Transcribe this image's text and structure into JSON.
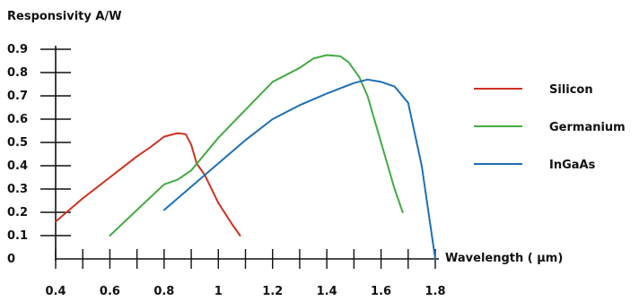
{
  "chart_data": {
    "type": "line",
    "ylabel": "Responsivity A/W",
    "xlabel": "Wavelength ( μm)",
    "xlim": [
      0.4,
      1.8
    ],
    "ylim": [
      0,
      0.9
    ],
    "x_ticks": [
      0.4,
      0.6,
      0.8,
      1,
      1.2,
      1.4,
      1.6,
      1.8
    ],
    "y_ticks": [
      0,
      0.1,
      0.2,
      0.3,
      0.4,
      0.5,
      0.6,
      0.7,
      0.8,
      0.9
    ],
    "grid": false,
    "legend_position": "right",
    "series": [
      {
        "name": "Silicon",
        "color": "#cc3322",
        "x": [
          0.4,
          0.5,
          0.6,
          0.7,
          0.75,
          0.8,
          0.85,
          0.88,
          0.9,
          0.92,
          0.95,
          1.0,
          1.05,
          1.08
        ],
        "y": [
          0.16,
          0.26,
          0.35,
          0.44,
          0.48,
          0.525,
          0.54,
          0.535,
          0.49,
          0.41,
          0.36,
          0.24,
          0.15,
          0.1
        ]
      },
      {
        "name": "Germanium",
        "color": "#44aa44",
        "x": [
          0.6,
          0.7,
          0.8,
          0.85,
          0.9,
          1.0,
          1.1,
          1.2,
          1.3,
          1.35,
          1.4,
          1.45,
          1.48,
          1.52,
          1.55,
          1.6,
          1.65,
          1.68
        ],
        "y": [
          0.1,
          0.21,
          0.32,
          0.34,
          0.38,
          0.52,
          0.64,
          0.76,
          0.82,
          0.86,
          0.875,
          0.87,
          0.845,
          0.78,
          0.7,
          0.5,
          0.3,
          0.2
        ]
      },
      {
        "name": "InGaAs",
        "color": "#1f6fb2",
        "x": [
          0.8,
          0.9,
          1.0,
          1.1,
          1.2,
          1.3,
          1.4,
          1.5,
          1.55,
          1.6,
          1.65,
          1.7,
          1.75,
          1.8
        ],
        "y": [
          0.21,
          0.31,
          0.41,
          0.51,
          0.6,
          0.66,
          0.71,
          0.755,
          0.77,
          0.76,
          0.74,
          0.67,
          0.4,
          0.0
        ]
      }
    ]
  }
}
